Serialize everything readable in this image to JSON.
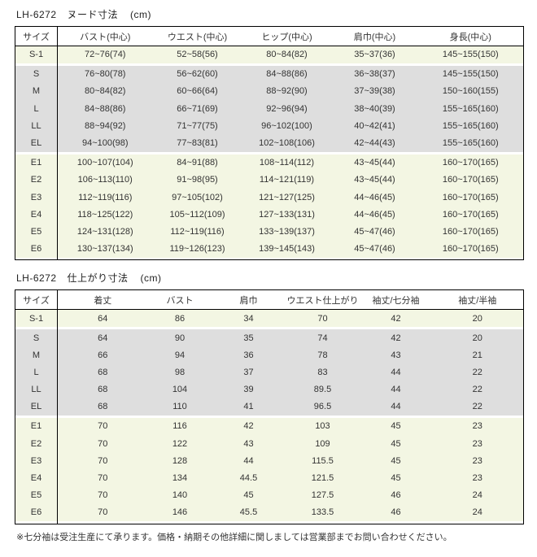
{
  "page": {
    "footer_note": "※七分袖は受注生産にて承ります。価格・納期その他詳細に関しましては営業部までお問い合わせください。"
  },
  "colors": {
    "row_highlight": "#f3f6e3",
    "row_gray": "#dedede",
    "border": "#000000",
    "text": "#333333"
  },
  "tables": [
    {
      "title": {
        "model": "LH-6272",
        "label": "ヌード寸法",
        "unit": "(cm)"
      },
      "columns": [
        "サイズ",
        "バスト(中心)",
        "ウエスト(中心)",
        "ヒップ(中心)",
        "肩巾(中心)",
        "身長(中心)"
      ],
      "row_groups": [
        {
          "tone": "yellow",
          "rows": [
            [
              "S-1",
              "72~76(74)",
              "52~58(56)",
              "80~84(82)",
              "35~37(36)",
              "145~155(150)"
            ]
          ]
        },
        {
          "tone": "gray",
          "rows": [
            [
              "S",
              "76~80(78)",
              "56~62(60)",
              "84~88(86)",
              "36~38(37)",
              "145~155(150)"
            ],
            [
              "M",
              "80~84(82)",
              "60~66(64)",
              "88~92(90)",
              "37~39(38)",
              "150~160(155)"
            ],
            [
              "L",
              "84~88(86)",
              "66~71(69)",
              "92~96(94)",
              "38~40(39)",
              "155~165(160)"
            ],
            [
              "LL",
              "88~94(92)",
              "71~77(75)",
              "96~102(100)",
              "40~42(41)",
              "155~165(160)"
            ],
            [
              "EL",
              "94~100(98)",
              "77~83(81)",
              "102~108(106)",
              "42~44(43)",
              "155~165(160)"
            ]
          ]
        },
        {
          "tone": "yellow",
          "rows": [
            [
              "E1",
              "100~107(104)",
              "84~91(88)",
              "108~114(112)",
              "43~45(44)",
              "160~170(165)"
            ],
            [
              "E2",
              "106~113(110)",
              "91~98(95)",
              "114~121(119)",
              "43~45(44)",
              "160~170(165)"
            ],
            [
              "E3",
              "112~119(116)",
              "97~105(102)",
              "121~127(125)",
              "44~46(45)",
              "160~170(165)"
            ],
            [
              "E4",
              "118~125(122)",
              "105~112(109)",
              "127~133(131)",
              "44~46(45)",
              "160~170(165)"
            ],
            [
              "E5",
              "124~131(128)",
              "112~119(116)",
              "133~139(137)",
              "45~47(46)",
              "160~170(165)"
            ],
            [
              "E6",
              "130~137(134)",
              "119~126(123)",
              "139~145(143)",
              "45~47(46)",
              "160~170(165)"
            ]
          ]
        }
      ]
    },
    {
      "title": {
        "model": "LH-6272",
        "label": "仕上がり寸法",
        "unit": "(cm)"
      },
      "columns": [
        "サイズ",
        "着丈",
        "バスト",
        "肩巾",
        "ウエスト仕上がり",
        "袖丈/七分袖",
        "袖丈/半袖"
      ],
      "row_groups": [
        {
          "tone": "yellow",
          "rows": [
            [
              "S-1",
              "64",
              "86",
              "34",
              "70",
              "42",
              "20"
            ]
          ]
        },
        {
          "tone": "gray",
          "rows": [
            [
              "S",
              "64",
              "90",
              "35",
              "74",
              "42",
              "20"
            ],
            [
              "M",
              "66",
              "94",
              "36",
              "78",
              "43",
              "21"
            ],
            [
              "L",
              "68",
              "98",
              "37",
              "83",
              "44",
              "22"
            ],
            [
              "LL",
              "68",
              "104",
              "39",
              "89.5",
              "44",
              "22"
            ],
            [
              "EL",
              "68",
              "110",
              "41",
              "96.5",
              "44",
              "22"
            ]
          ]
        },
        {
          "tone": "yellow",
          "rows": [
            [
              "E1",
              "70",
              "116",
              "42",
              "103",
              "45",
              "23"
            ],
            [
              "E2",
              "70",
              "122",
              "43",
              "109",
              "45",
              "23"
            ],
            [
              "E3",
              "70",
              "128",
              "44",
              "115.5",
              "45",
              "23"
            ],
            [
              "E4",
              "70",
              "134",
              "44.5",
              "121.5",
              "45",
              "23"
            ],
            [
              "E5",
              "70",
              "140",
              "45",
              "127.5",
              "46",
              "24"
            ],
            [
              "E6",
              "70",
              "146",
              "45.5",
              "133.5",
              "46",
              "24"
            ]
          ]
        }
      ]
    }
  ]
}
